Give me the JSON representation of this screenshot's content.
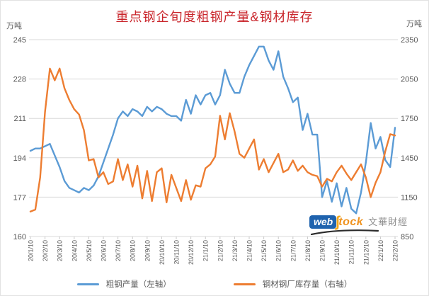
{
  "header": {
    "title": "重点钢企旬度粗钢产量&钢材库存",
    "title_color": "#C9252B",
    "unit_left": "万吨",
    "unit_right": "万吨"
  },
  "legend": [
    {
      "label": "粗钢产量（左轴）",
      "color": "#5B9BD5"
    },
    {
      "label": "钢材钢厂库存量（右轴）",
      "color": "#ED7D31"
    }
  ],
  "watermark": {
    "web": "web",
    "s": "ʃ",
    "tock": "tock",
    "cn": "文華財經",
    "web_bg": "#1F63AE",
    "tock_color": "#F0931F"
  },
  "chart_data": {
    "type": "line",
    "title": "重点钢企旬度粗钢产量&钢材库存",
    "grid": true,
    "legend_position": "bottom",
    "x_labels": [
      "20/1/10",
      "20/2/10",
      "20/3/10",
      "20/4/10",
      "20/5/10",
      "20/6/10",
      "20/7/10",
      "20/8/10",
      "20/9/10",
      "20/10/10",
      "20/11/10",
      "20/12/10",
      "21/1/10",
      "21/2/10",
      "21/3/10",
      "21/4/10",
      "21/5/10",
      "21/6/10",
      "21/7/10",
      "21/8/10",
      "21/9/10",
      "21/10/10",
      "21/11/10",
      "21/12/10",
      "22/1/10",
      "22/2/10"
    ],
    "points_per_label": 3,
    "y_axis_left": {
      "unit": "万吨",
      "ticks": [
        245,
        228,
        211,
        194,
        177,
        160
      ],
      "min": 160,
      "max": 245
    },
    "y_axis_right": {
      "unit": "万吨",
      "ticks": [
        2350,
        2050,
        1750,
        1450,
        1150,
        850
      ],
      "min": 850,
      "max": 2350
    },
    "tick_color": "#595959",
    "gridline_color": "#D9D9D9",
    "series": [
      {
        "name": "粗钢产量（左轴）",
        "axis": "left",
        "color": "#5B9BD5",
        "values": [
          197,
          198,
          198,
          199,
          200,
          195,
          190,
          184,
          181,
          180,
          179,
          181,
          180,
          182,
          186,
          192,
          198,
          204,
          211,
          214,
          212,
          215,
          214,
          212,
          216,
          214,
          216,
          215,
          213,
          212,
          212,
          210,
          219,
          213,
          221,
          217,
          221,
          222,
          217,
          221,
          232,
          226,
          222,
          222,
          229,
          234,
          238,
          242,
          242,
          236,
          232,
          240,
          229,
          224,
          218,
          220,
          206,
          213,
          204,
          204,
          177,
          184,
          175,
          183,
          173,
          181,
          172,
          170,
          179,
          192,
          209,
          198,
          203,
          193,
          190,
          207
        ]
      },
      {
        "name": "钢材钢厂库存量（右轴）",
        "axis": "right",
        "color": "#ED7D31",
        "values": [
          1040,
          1055,
          1300,
          1800,
          2130,
          2040,
          2130,
          1980,
          1890,
          1820,
          1780,
          1660,
          1430,
          1440,
          1300,
          1340,
          1250,
          1270,
          1440,
          1280,
          1400,
          1230,
          1390,
          1140,
          1350,
          1120,
          1340,
          1370,
          1110,
          1320,
          1220,
          1120,
          1280,
          1130,
          1240,
          1230,
          1370,
          1400,
          1460,
          1770,
          1590,
          1790,
          1650,
          1480,
          1450,
          1520,
          1590,
          1360,
          1440,
          1340,
          1410,
          1480,
          1340,
          1360,
          1430,
          1350,
          1390,
          1340,
          1320,
          1310,
          1230,
          1290,
          1270,
          1340,
          1390,
          1330,
          1280,
          1340,
          1400,
          1300,
          1150,
          1260,
          1340,
          1500,
          1630,
          1620
        ]
      }
    ]
  }
}
